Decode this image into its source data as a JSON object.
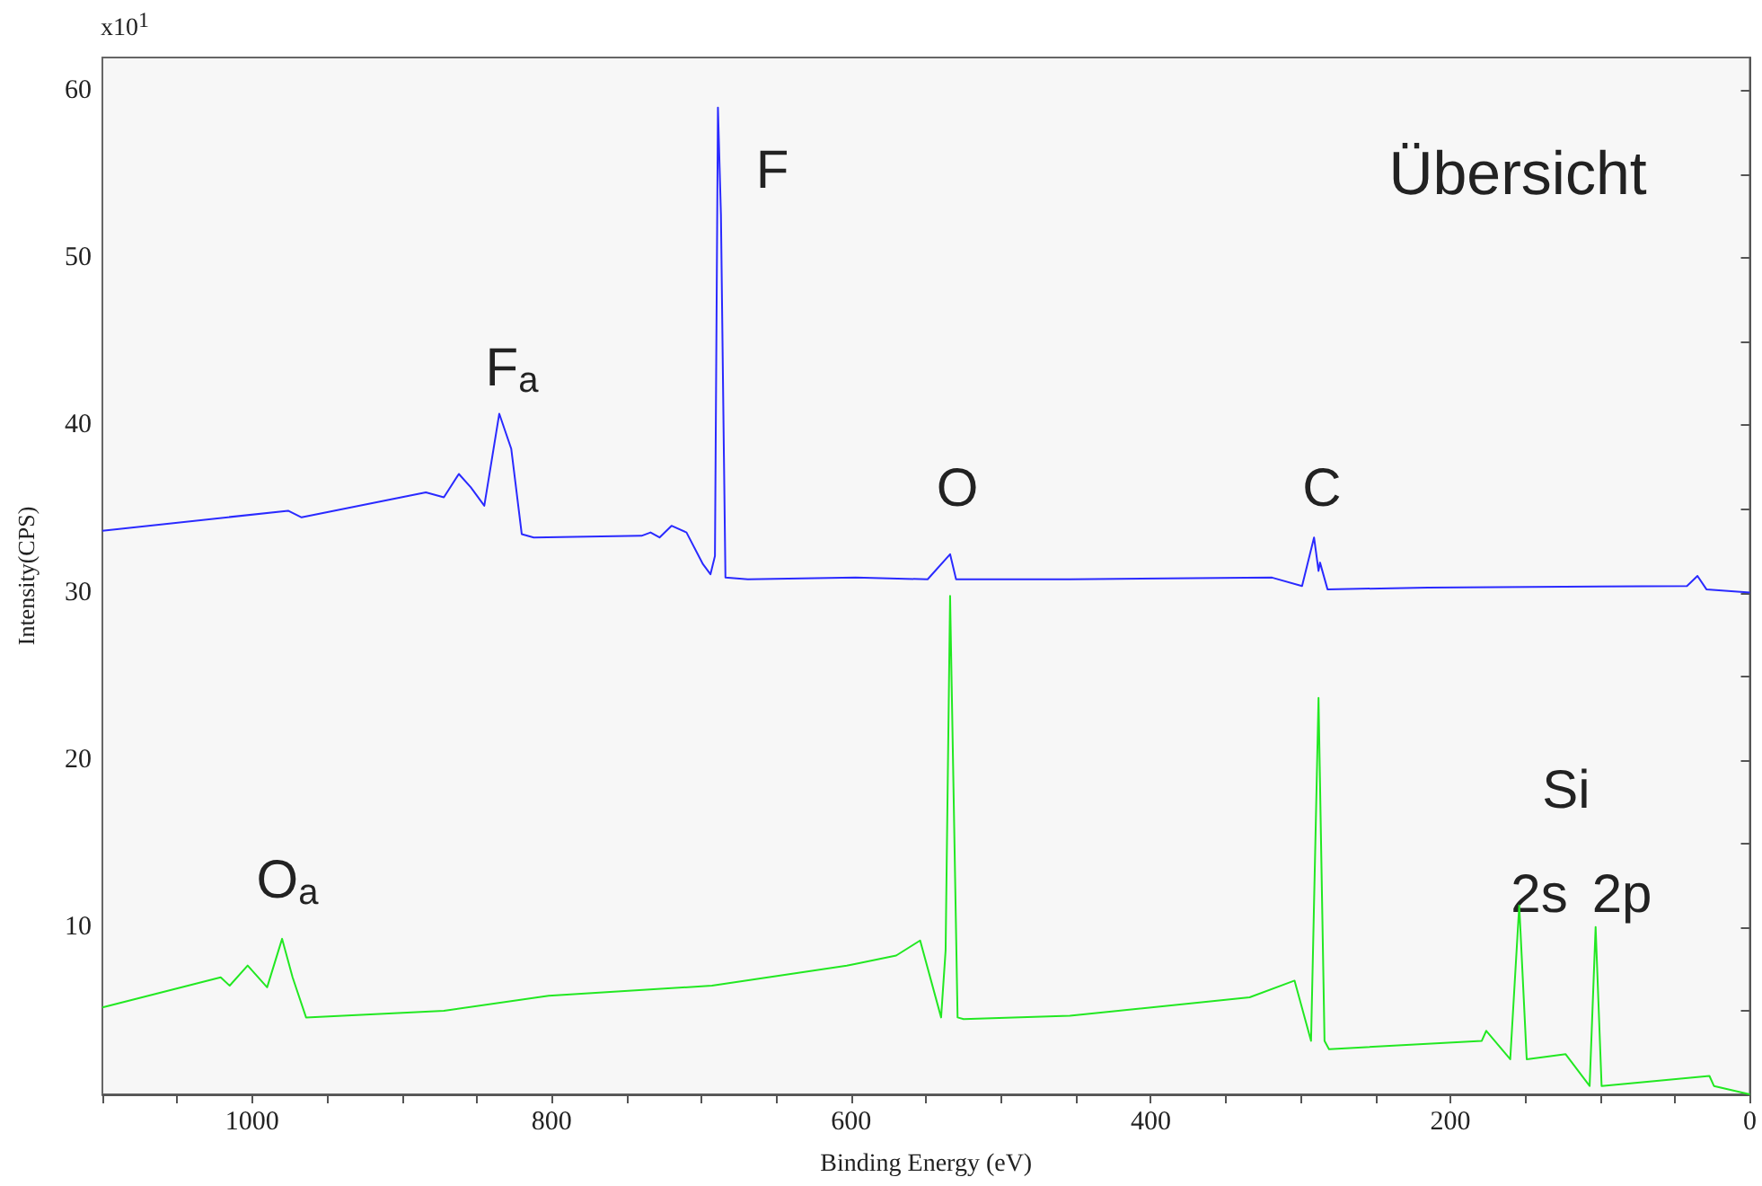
{
  "chart_data": {
    "type": "line",
    "xlabel": "Binding Energy (eV)",
    "ylabel": "Intensity(CPS)",
    "xlim": [
      1100,
      0
    ],
    "xticks": [
      {
        "value": 1100,
        "label": null
      },
      {
        "value": 1050,
        "label": null
      },
      1000,
      {
        "value": 950,
        "label": null
      },
      {
        "value": 900,
        "label": null
      },
      {
        "value": 850,
        "label": null
      },
      800,
      {
        "value": 750,
        "label": null
      },
      {
        "value": 700,
        "label": null
      },
      {
        "value": 650,
        "label": null
      },
      600,
      {
        "value": 550,
        "label": null
      },
      {
        "value": 500,
        "label": null
      },
      {
        "value": 450,
        "label": null
      },
      400,
      {
        "value": 350,
        "label": null
      },
      {
        "value": 300,
        "label": null
      },
      {
        "value": 250,
        "label": null
      },
      200,
      {
        "value": 150,
        "label": null
      },
      {
        "value": 100,
        "label": null
      },
      {
        "value": 50,
        "label": null
      },
      0
    ],
    "ylim": [
      0,
      62
    ],
    "yticks": [
      {
        "value": 5,
        "label": null
      },
      10,
      {
        "value": 15,
        "label": null
      },
      20,
      {
        "value": 25,
        "label": null
      },
      30,
      {
        "value": 35,
        "label": null
      },
      40,
      {
        "value": 45,
        "label": null
      },
      50,
      {
        "value": 55,
        "label": null
      },
      60
    ],
    "grid": false,
    "legend": false,
    "marker": "none",
    "line_style": "solid",
    "series": [
      {
        "color": "#2a2aff",
        "x": [
          1100,
          976,
          967,
          884,
          872,
          862,
          854,
          845,
          835,
          827,
          820,
          812,
          740,
          734,
          728,
          720,
          710,
          699,
          694,
          691,
          689,
          687,
          684,
          669,
          597,
          549,
          534,
          530,
          454,
          319,
          299,
          291,
          288,
          287,
          282,
          215,
          42,
          35,
          29,
          0
        ],
        "values": [
          33.7,
          34.9,
          34.5,
          36.0,
          35.7,
          37.1,
          36.3,
          35.2,
          40.7,
          38.6,
          33.5,
          33.3,
          33.4,
          33.6,
          33.3,
          34.0,
          33.6,
          31.7,
          31.1,
          32.2,
          59.0,
          52.6,
          30.9,
          30.8,
          30.9,
          30.8,
          32.3,
          30.8,
          30.8,
          30.9,
          30.4,
          33.3,
          31.3,
          31.8,
          30.2,
          30.3,
          30.4,
          31.0,
          30.2,
          30.0
        ]
      },
      {
        "color": "#22e822",
        "x": [
          1100,
          1021,
          1015,
          1003,
          990,
          980,
          973,
          964,
          872,
          802,
          693,
          603,
          597,
          570,
          554,
          540,
          537,
          534,
          529,
          525,
          454,
          334,
          304,
          293,
          288,
          284,
          281,
          179,
          176,
          160,
          154,
          149,
          123,
          107,
          103,
          99,
          27,
          24,
          0
        ],
        "values": [
          5.2,
          7.0,
          6.5,
          7.7,
          6.4,
          9.3,
          7.0,
          4.6,
          5.0,
          5.9,
          6.5,
          7.7,
          7.8,
          8.3,
          9.2,
          4.6,
          8.6,
          29.8,
          4.6,
          4.5,
          4.7,
          5.8,
          6.8,
          3.2,
          23.7,
          3.2,
          2.7,
          3.2,
          3.8,
          2.1,
          11.3,
          2.1,
          2.4,
          0.5,
          10.0,
          0.5,
          1.1,
          0.5,
          0.0
        ]
      }
    ],
    "annotations": [
      "x10$^{1}$",
      "Übersicht",
      "F",
      "F$_{a}$",
      "O",
      "C",
      "O$_{a}$",
      "Si",
      "2s",
      "2p"
    ]
  }
}
